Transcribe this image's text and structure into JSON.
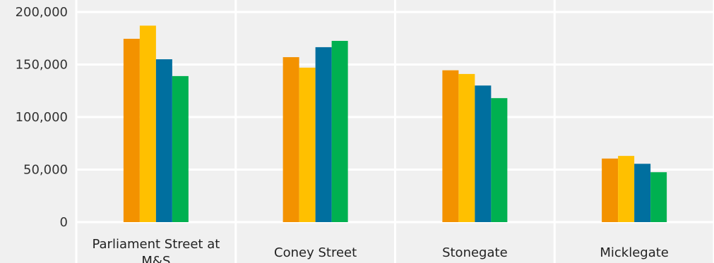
{
  "chart_data": {
    "type": "bar",
    "title": "",
    "xlabel": "",
    "ylabel": "",
    "categories": [
      [
        "Parliament Street at",
        "M&S"
      ],
      [
        "Coney Street"
      ],
      [
        "Stonegate"
      ],
      [
        "Micklegate"
      ]
    ],
    "series": [
      {
        "color": "#f39200",
        "values": [
          174500,
          157000,
          144500,
          60500
        ]
      },
      {
        "color": "#ffc000",
        "values": [
          187000,
          147000,
          141000,
          63000
        ]
      },
      {
        "color": "#006f9f",
        "values": [
          155000,
          166500,
          130000,
          55500
        ]
      },
      {
        "color": "#00b050",
        "values": [
          139000,
          172500,
          118000,
          47500
        ]
      }
    ],
    "ylim": [
      0,
      200000
    ],
    "y_ticks": [
      0,
      50000,
      100000,
      150000,
      200000
    ],
    "y_tick_labels": [
      "0",
      "50,000",
      "100,000",
      "150,000",
      "200,000"
    ],
    "grid": true,
    "legend": "none"
  }
}
